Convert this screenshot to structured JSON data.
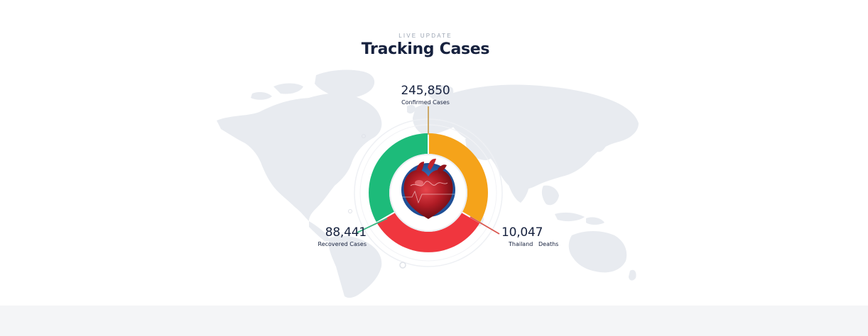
{
  "header": {
    "eyebrow": "LIVE UPDATE",
    "title": "Tracking Cases"
  },
  "stats": {
    "confirmed": {
      "value": "245,850",
      "label": "Confirmed Cases",
      "color": "#f5a31a"
    },
    "recovered": {
      "value": "88,441",
      "label": "Recovered Cases",
      "color": "#1dbb7a"
    },
    "deaths": {
      "value": "10,047",
      "label": "Thailand   Deaths",
      "color": "#f0363e"
    }
  },
  "colors": {
    "map": "#e8ebf0",
    "footer_band": "#f4f5f7",
    "heading_text": "#16213e",
    "eyebrow_text": "#9aa3b2"
  },
  "icons": {
    "center": "heart-icon"
  }
}
